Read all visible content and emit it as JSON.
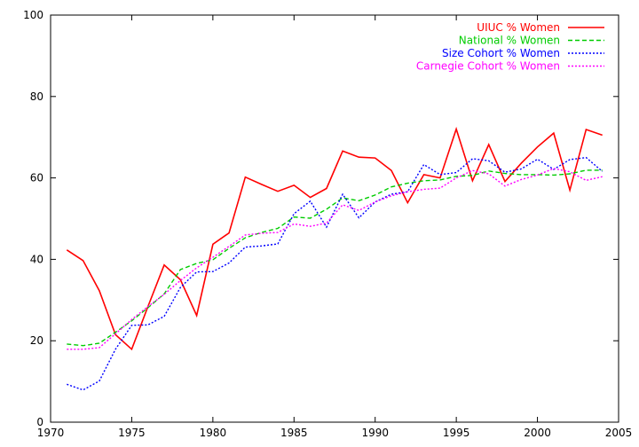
{
  "chart_data": {
    "type": "line",
    "title": "",
    "xlabel": "",
    "ylabel": "",
    "xlim": [
      1970,
      2005
    ],
    "ylim": [
      0,
      100
    ],
    "x_ticks": [
      1970,
      1975,
      1980,
      1985,
      1990,
      1995,
      2000,
      2005
    ],
    "y_ticks": [
      0,
      20,
      40,
      60,
      80,
      100
    ],
    "grid": false,
    "legend_position": "top-right",
    "x": [
      1971,
      1972,
      1973,
      1974,
      1975,
      1976,
      1977,
      1978,
      1979,
      1980,
      1981,
      1982,
      1983,
      1984,
      1985,
      1986,
      1987,
      1988,
      1989,
      1990,
      1991,
      1992,
      1993,
      1994,
      1995,
      1996,
      1997,
      1998,
      1999,
      2000,
      2001,
      2002,
      2003,
      2004
    ],
    "series": [
      {
        "name": "UIUC % Women",
        "color": "#ff0000",
        "dash": "solid",
        "values": [
          42.3,
          39.7,
          32.3,
          21.5,
          17.9,
          28.4,
          38.6,
          35.0,
          26.2,
          43.7,
          46.5,
          60.2,
          58.4,
          56.7,
          58.2,
          55.2,
          57.4,
          66.6,
          65.1,
          64.9,
          61.8,
          53.9,
          60.8,
          60.0,
          72.0,
          59.3,
          68.2,
          59.1,
          63.6,
          67.6,
          71.0,
          57.0,
          71.9,
          70.5
        ]
      },
      {
        "name": "National % Women",
        "color": "#00cc00",
        "dash": "dashed",
        "values": [
          19.2,
          18.8,
          19.4,
          22.1,
          24.9,
          28.1,
          31.5,
          37.5,
          39.0,
          39.9,
          42.7,
          45.3,
          46.6,
          47.6,
          50.4,
          50.1,
          52.3,
          55.1,
          54.4,
          55.8,
          57.8,
          58.7,
          59.3,
          59.5,
          60.4,
          60.6,
          61.7,
          61.1,
          60.8,
          60.8,
          60.7,
          61.0,
          61.9,
          61.9
        ]
      },
      {
        "name": "Size Cohort % Women",
        "color": "#0000ff",
        "dash": "dotted",
        "values": [
          9.3,
          7.9,
          10.1,
          17.9,
          23.8,
          23.9,
          26.0,
          33.1,
          36.9,
          37.0,
          39.1,
          43.0,
          43.3,
          43.8,
          51.2,
          54.3,
          47.9,
          56.0,
          50.2,
          54.1,
          56.0,
          56.6,
          63.3,
          60.8,
          61.3,
          64.7,
          64.2,
          61.4,
          62.2,
          64.6,
          62.1,
          64.5,
          65.0,
          61.6
        ]
      },
      {
        "name": "Carnegie Cohort % Women",
        "color": "#ff00ff",
        "dash": "dotted",
        "values": [
          17.9,
          17.9,
          18.3,
          21.7,
          25.2,
          28.4,
          31.4,
          34.8,
          37.9,
          40.5,
          43.2,
          46.0,
          46.4,
          46.6,
          48.7,
          48.1,
          48.9,
          53.4,
          52.0,
          54.1,
          55.6,
          56.6,
          57.2,
          57.5,
          60.0,
          61.8,
          61.0,
          58.0,
          59.6,
          60.7,
          62.3,
          61.5,
          59.4,
          60.3
        ]
      }
    ]
  }
}
